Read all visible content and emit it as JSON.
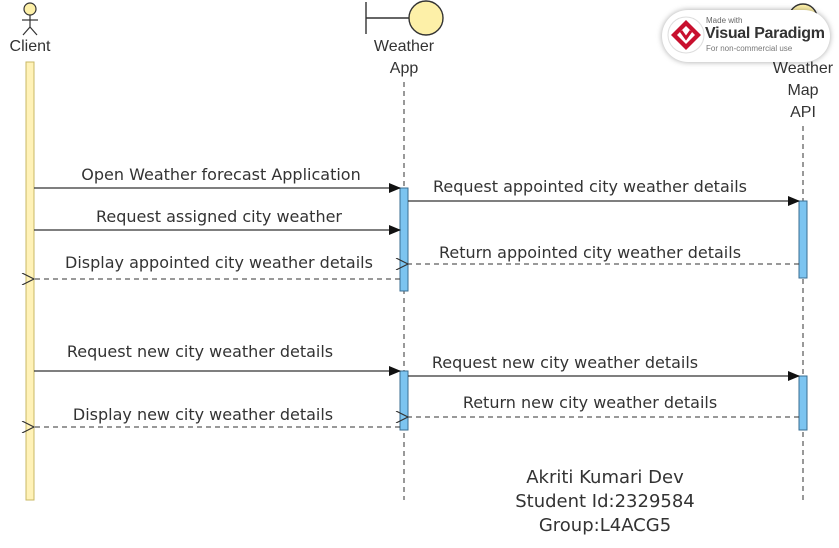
{
  "participants": [
    {
      "id": "client",
      "type": "actor",
      "name": "Client"
    },
    {
      "id": "weather_app",
      "type": "boundary",
      "name_lines": [
        "Weather",
        "App"
      ]
    },
    {
      "id": "weather_map_api",
      "type": "entity",
      "name_lines": [
        "Weather",
        "Map",
        "API"
      ]
    }
  ],
  "messages": [
    {
      "id": "m1",
      "label": "Open Weather forecast Application",
      "style": "solid"
    },
    {
      "id": "m2",
      "label": "Request appointed city weather details",
      "style": "solid"
    },
    {
      "id": "m3",
      "label": "Request assigned city weather",
      "style": "solid"
    },
    {
      "id": "m4",
      "label": "Return appointed city weather details",
      "style": "dashed"
    },
    {
      "id": "m5",
      "label": "Display appointed city weather details",
      "style": "dashed"
    },
    {
      "id": "m6",
      "label": "Request new city weather details",
      "style": "solid"
    },
    {
      "id": "m7",
      "label": "Request new city weather details",
      "style": "solid"
    },
    {
      "id": "m8",
      "label": "Return new city weather details",
      "style": "dashed"
    },
    {
      "id": "m9",
      "label": "Display new city weather details",
      "style": "dashed"
    }
  ],
  "author": {
    "name": "Akriti Kumari Dev",
    "student_id": "Student Id:2329584",
    "group": "Group:L4ACG5"
  },
  "watermark": {
    "made_with": "Made with",
    "brand": "Visual Paradigm",
    "note": "For non-commercial use"
  },
  "colors": {
    "actor_activation": "#fff2b8",
    "actor_activation_border": "#c9b865",
    "app_activation": "#7cc4f0",
    "app_activation_border": "#3a6e92",
    "lifeline_head": "#fdf0a8",
    "line": "#333333",
    "brand_red": "#c8102e"
  }
}
